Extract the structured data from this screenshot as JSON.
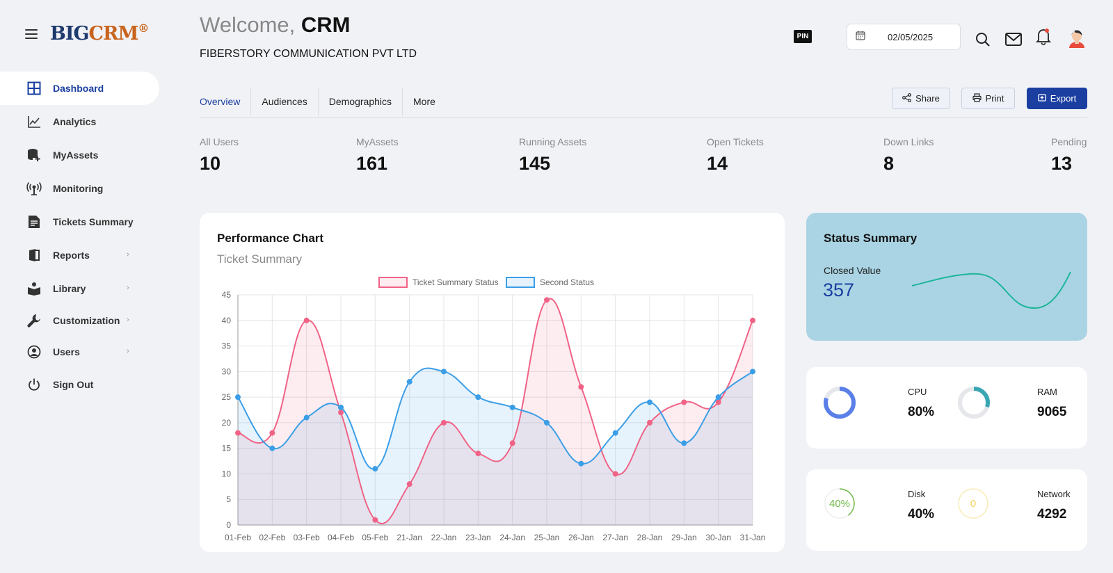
{
  "brand": {
    "big": "BIG",
    "crm": "CRM",
    "reg": "®"
  },
  "sidebar": {
    "items": [
      {
        "label": "Dashboard",
        "icon": "grid-icon"
      },
      {
        "label": "Analytics",
        "icon": "line-chart-icon"
      },
      {
        "label": "MyAssets",
        "icon": "database-add-icon"
      },
      {
        "label": "Monitoring",
        "icon": "broadcast-icon"
      },
      {
        "label": "Tickets Summary",
        "icon": "document-icon"
      },
      {
        "label": "Reports",
        "icon": "book-icon"
      },
      {
        "label": "Library",
        "icon": "reading-icon"
      },
      {
        "label": "Customization",
        "icon": "wrench-icon"
      },
      {
        "label": "Users",
        "icon": "user-circle-icon"
      },
      {
        "label": "Sign Out",
        "icon": "power-icon"
      }
    ]
  },
  "header": {
    "welcome_prefix": "Welcome,",
    "welcome_name": "CRM",
    "company": "FIBERSTORY COMMUNICATION PVT LTD",
    "pin": "PIN",
    "date": "02/05/2025"
  },
  "tabs": [
    "Overview",
    "Audiences",
    "Demographics",
    "More"
  ],
  "actions": {
    "share": "Share",
    "print": "Print",
    "export": "Export"
  },
  "stats": [
    {
      "label": "All Users",
      "value": "10"
    },
    {
      "label": "MyAssets",
      "value": "161"
    },
    {
      "label": "Running Assets",
      "value": "145"
    },
    {
      "label": "Open Tickets",
      "value": "14"
    },
    {
      "label": "Down Links",
      "value": "8"
    },
    {
      "label": "Pending",
      "value": "13"
    }
  ],
  "performance": {
    "title": "Performance Chart",
    "subtitle": "Ticket Summary"
  },
  "status_summary": {
    "title": "Status Summary",
    "closed_label": "Closed Value",
    "closed_value": "357"
  },
  "resources": {
    "cpu": {
      "label": "CPU",
      "value": "80%",
      "fraction": 0.8
    },
    "ram": {
      "label": "RAM",
      "value": "9065",
      "fraction": 0.3
    },
    "disk": {
      "label": "Disk",
      "value": "40%",
      "ring_text": "40%",
      "fraction": 0.4
    },
    "network": {
      "label": "Network",
      "value": "4292",
      "ring_text": "0",
      "fraction": 0
    }
  },
  "colors": {
    "primary": "#1a3fa0",
    "series1": "#f06386",
    "series2": "#3b9ee6",
    "cpu": "#5b7fe8",
    "ram": "#3aa6b3",
    "disk": "#6dbb47",
    "network": "#f2d25a",
    "sparkline": "#1fb59a"
  },
  "chart_data": {
    "type": "line",
    "categories": [
      "01-Feb",
      "02-Feb",
      "03-Feb",
      "04-Feb",
      "05-Feb",
      "21-Jan",
      "22-Jan",
      "23-Jan",
      "24-Jan",
      "25-Jan",
      "26-Jan",
      "27-Jan",
      "28-Jan",
      "29-Jan",
      "30-Jan",
      "31-Jan"
    ],
    "series": [
      {
        "name": "Ticket Summary Status",
        "values": [
          18,
          18,
          40,
          22,
          1,
          8,
          20,
          14,
          16,
          44,
          27,
          10,
          20,
          24,
          24,
          40
        ]
      },
      {
        "name": "Second Status",
        "values": [
          25,
          15,
          21,
          23,
          11,
          28,
          30,
          25,
          23,
          20,
          12,
          18,
          24,
          16,
          25,
          30
        ]
      }
    ],
    "ylim": [
      0,
      45
    ],
    "yticks": [
      0,
      5,
      10,
      15,
      20,
      25,
      30,
      35,
      40,
      45
    ],
    "grid": true,
    "legend": "top-center",
    "fill": true
  }
}
